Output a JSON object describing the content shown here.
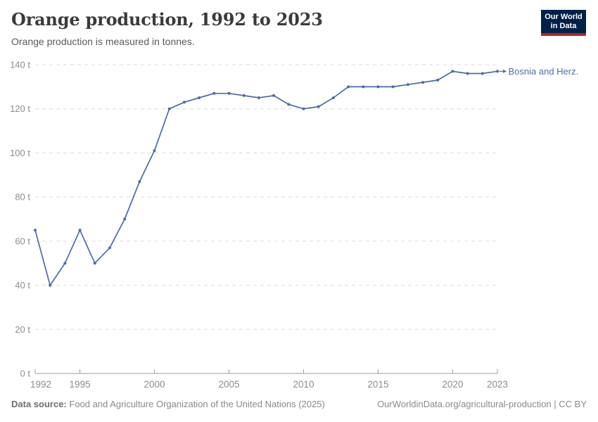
{
  "header": {
    "title": "Orange production, 1992 to 2023",
    "subtitle": "Orange production is measured in tonnes.",
    "logo": {
      "line1": "Our World",
      "line2": "in Data",
      "bg": "#002147",
      "accent": "#b0222c"
    }
  },
  "chart_data": {
    "type": "line",
    "title": "Orange production, 1992 to 2023",
    "ylabel": "",
    "xlabel": "",
    "unit": "tonnes",
    "ytick_suffix": " t",
    "ylim": [
      0,
      140
    ],
    "xlim": [
      1992,
      2023
    ],
    "yticks": [
      0,
      20,
      40,
      60,
      80,
      100,
      120,
      140
    ],
    "xticks": [
      1992,
      1995,
      2000,
      2005,
      2010,
      2015,
      2020,
      2023
    ],
    "grid": "horizontal-dashed",
    "legend_position": "right-end-label",
    "x": [
      1992,
      1993,
      1994,
      1995,
      1996,
      1997,
      1998,
      1999,
      2000,
      2001,
      2002,
      2003,
      2004,
      2005,
      2006,
      2007,
      2008,
      2009,
      2010,
      2011,
      2012,
      2013,
      2014,
      2015,
      2016,
      2017,
      2018,
      2019,
      2020,
      2021,
      2022,
      2023
    ],
    "series": [
      {
        "name": "Bosnia and Herz.",
        "color": "#4C6BA8",
        "values": [
          65,
          40,
          50,
          65,
          50,
          57,
          70,
          87,
          101,
          120,
          123,
          125,
          127,
          127,
          126,
          125,
          126,
          122,
          120,
          121,
          125,
          130,
          130,
          130,
          130,
          131,
          132,
          133,
          137,
          136,
          136,
          137
        ]
      }
    ],
    "colors": {
      "gridline": "#dcdcdc",
      "axis": "#9e9e9e",
      "tick_label": "#8c8c8c"
    }
  },
  "footer": {
    "source_label": "Data source:",
    "source_text": "Food and Agriculture Organization of the United Nations (2025)",
    "rights": "OurWorldinData.org/agricultural-production | CC BY"
  }
}
